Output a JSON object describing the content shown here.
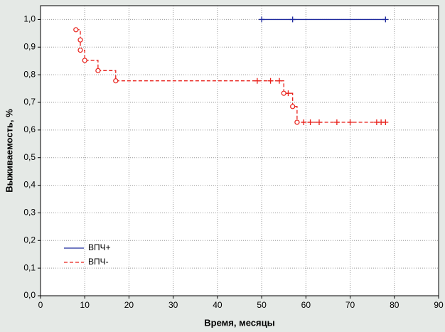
{
  "chart_data": {
    "type": "kaplan-meier",
    "xlabel": "Время, месяцы",
    "ylabel": "Выживаемость, %",
    "xlim": [
      0,
      90
    ],
    "ylim": [
      0,
      1.05
    ],
    "xticks": [
      0,
      10,
      20,
      30,
      40,
      50,
      60,
      70,
      80,
      90
    ],
    "yticks": [
      {
        "value": 0,
        "label": "0,0"
      },
      {
        "value": 0.1,
        "label": "0,1"
      },
      {
        "value": 0.2,
        "label": "0,2"
      },
      {
        "value": 0.3,
        "label": "0,3"
      },
      {
        "value": 0.4,
        "label": "0,4"
      },
      {
        "value": 0.5,
        "label": "0,5"
      },
      {
        "value": 0.6,
        "label": "0,6"
      },
      {
        "value": 0.7,
        "label": "0,7"
      },
      {
        "value": 0.8,
        "label": "0,8"
      },
      {
        "value": 0.9,
        "label": "0,9"
      },
      {
        "value": 1.0,
        "label": "1,0"
      }
    ],
    "grid": true,
    "legend": "lower left",
    "series": [
      {
        "name": "ВПЧ+",
        "color": "#1f2a9e",
        "dash": false,
        "events_x": [],
        "events": [],
        "censored_x": [
          50,
          57,
          78
        ],
        "censored": [
          1.0,
          1.0,
          1.0
        ]
      },
      {
        "name": "ВПЧ-",
        "color": "#e8201a",
        "dash": true,
        "events_x": [
          8,
          9,
          9,
          10,
          13,
          17,
          55,
          57,
          58
        ],
        "events": [
          0.963,
          0.926,
          0.889,
          0.852,
          0.815,
          0.778,
          0.733,
          0.685,
          0.628
        ],
        "censored_x": [
          49,
          52,
          54,
          56,
          59.5,
          61,
          63,
          67,
          70,
          76,
          77,
          78
        ],
        "censored": [
          0.778,
          0.778,
          0.778,
          0.733,
          0.628,
          0.628,
          0.628,
          0.628,
          0.628,
          0.628,
          0.628,
          0.628
        ]
      }
    ]
  }
}
